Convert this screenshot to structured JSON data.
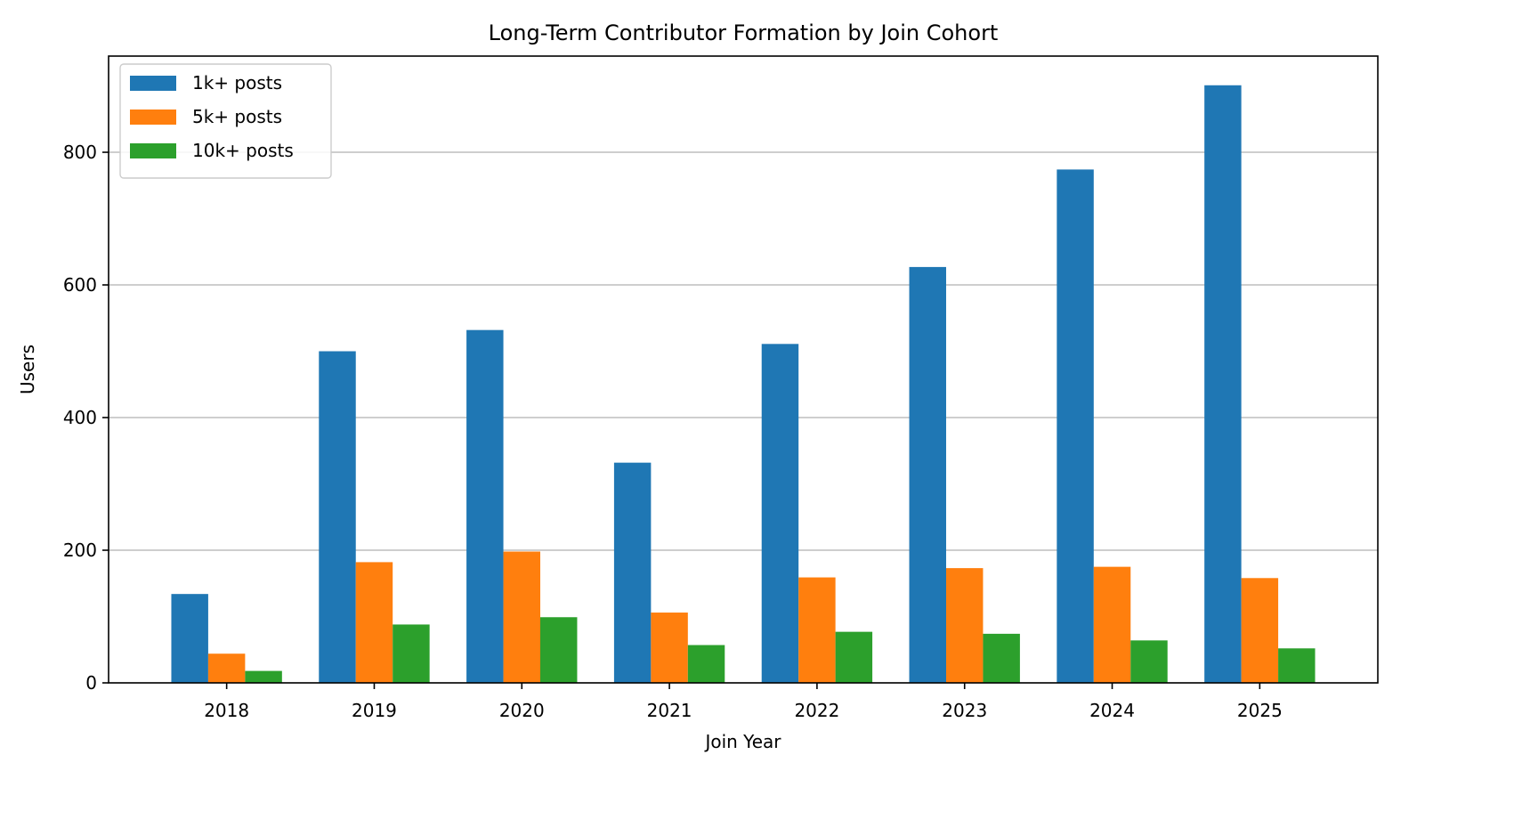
{
  "chart_data": {
    "type": "bar",
    "title": "Long-Term Contributor Formation by Join Cohort",
    "xlabel": "Join Year",
    "ylabel": "Users",
    "categories": [
      "2018",
      "2019",
      "2020",
      "2021",
      "2022",
      "2023",
      "2024",
      "2025"
    ],
    "series": [
      {
        "name": "1k+ posts",
        "color": "#1f77b4",
        "values": [
          134,
          500,
          532,
          332,
          511,
          627,
          774,
          901
        ]
      },
      {
        "name": "5k+ posts",
        "color": "#ff7f0e",
        "values": [
          44,
          182,
          198,
          106,
          159,
          173,
          175,
          158
        ]
      },
      {
        "name": "10k+ posts",
        "color": "#2ca02c",
        "values": [
          18,
          88,
          99,
          57,
          77,
          74,
          64,
          52
        ]
      }
    ],
    "ylim": [
      0,
      945
    ],
    "yticks": [
      0,
      200,
      400,
      600,
      800
    ],
    "grid": "y",
    "legend": "top-left"
  }
}
